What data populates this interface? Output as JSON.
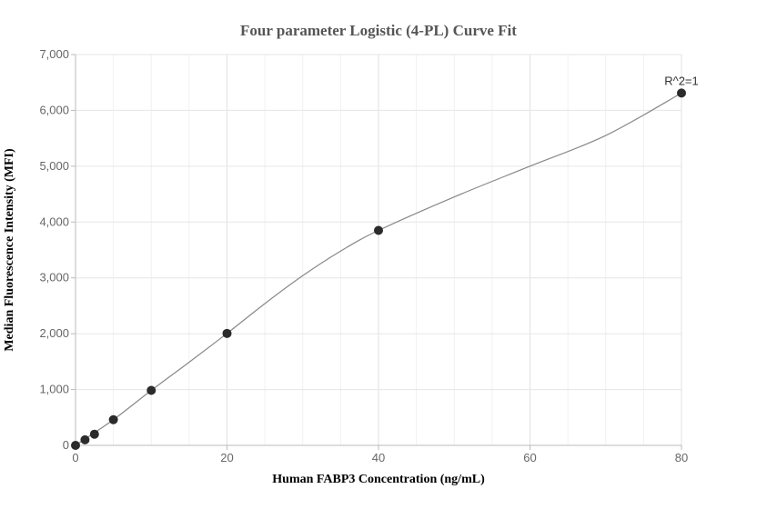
{
  "chart_data": {
    "type": "scatter",
    "title": "Four parameter Logistic (4-PL) Curve Fit",
    "xlabel": "Human FABP3 Concentration (ng/mL)",
    "ylabel": "Median Fluorescence Intensity (MFI)",
    "xlim": [
      0,
      80
    ],
    "ylim": [
      0,
      7000
    ],
    "x_ticks": [
      0,
      20,
      40,
      60,
      80
    ],
    "y_ticks": [
      0,
      1000,
      2000,
      3000,
      4000,
      5000,
      6000,
      7000
    ],
    "x_tick_labels": [
      "0",
      "20",
      "40",
      "60",
      "80"
    ],
    "y_tick_labels": [
      "0",
      "1,000",
      "2,000",
      "3,000",
      "4,000",
      "5,000",
      "6,000",
      "7,000"
    ],
    "grid": true,
    "points": {
      "x": [
        0,
        1.25,
        2.5,
        5,
        10,
        20,
        40,
        80
      ],
      "y": [
        0,
        100,
        200,
        460,
        985,
        2005,
        3850,
        6310
      ]
    },
    "fit_curve": {
      "x": [
        0,
        5,
        10,
        15,
        20,
        25,
        30,
        35,
        40,
        50,
        60,
        70,
        80
      ],
      "y": [
        0,
        460,
        985,
        1490,
        2005,
        2540,
        3040,
        3480,
        3850,
        4450,
        5000,
        5550,
        6310
      ]
    },
    "annotation": "R^2=1",
    "colors": {
      "point": "#2b2b2b",
      "curve": "#888888",
      "grid": "#e6e6e6",
      "axis": "#bbbbbb"
    }
  }
}
